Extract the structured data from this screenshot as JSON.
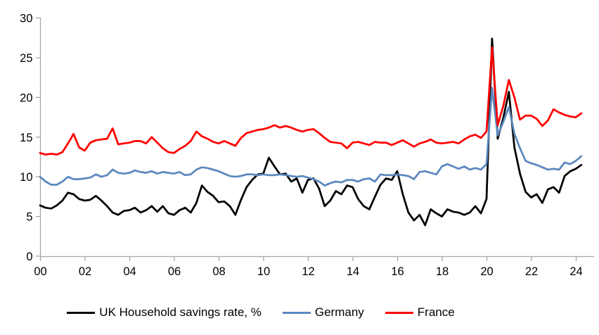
{
  "chart_data": {
    "type": "line",
    "title": "",
    "xlabel": "",
    "ylabel": "",
    "grid": false,
    "legend_position": "bottom",
    "x_start": 2000,
    "x_step": 0.25,
    "x_axis": {
      "tick_labels": [
        "00",
        "02",
        "04",
        "06",
        "08",
        "10",
        "12",
        "14",
        "16",
        "18",
        "20",
        "22",
        "24"
      ],
      "tick_years": [
        2000,
        2002,
        2004,
        2006,
        2008,
        2010,
        2012,
        2014,
        2016,
        2018,
        2020,
        2022,
        2024
      ]
    },
    "y_axis": {
      "min": 0,
      "max": 30,
      "tick_interval": 5,
      "tick_labels": [
        "0",
        "5",
        "10",
        "15",
        "20",
        "25",
        "30"
      ],
      "tick_values": [
        0,
        5,
        10,
        15,
        20,
        25,
        30
      ]
    },
    "series": [
      {
        "name": "UK Household savings rate, %",
        "color": "#000000",
        "values": [
          6.4,
          6.1,
          6.0,
          6.4,
          7.0,
          8.0,
          7.8,
          7.2,
          7.0,
          7.1,
          7.6,
          7.0,
          6.3,
          5.5,
          5.2,
          5.7,
          5.8,
          6.1,
          5.5,
          5.8,
          6.3,
          5.6,
          6.3,
          5.4,
          5.2,
          5.8,
          6.1,
          5.5,
          6.7,
          8.9,
          8.1,
          7.6,
          6.8,
          6.9,
          6.3,
          5.2,
          7.1,
          8.7,
          9.6,
          10.3,
          10.4,
          12.4,
          11.3,
          10.3,
          10.4,
          9.4,
          9.8,
          8.0,
          9.6,
          9.8,
          8.5,
          6.3,
          7.0,
          8.2,
          7.8,
          8.9,
          8.7,
          7.2,
          6.3,
          5.9,
          7.5,
          9.0,
          9.8,
          9.6,
          10.7,
          7.8,
          5.5,
          4.5,
          5.2,
          3.9,
          5.9,
          5.4,
          5.0,
          5.9,
          5.6,
          5.5,
          5.2,
          5.5,
          6.3,
          5.4,
          7.2,
          27.4,
          14.8,
          17.4,
          20.7,
          13.7,
          10.4,
          8.1,
          7.4,
          7.8,
          6.7,
          8.4,
          8.7,
          8.0,
          10.1,
          10.7,
          11.0,
          11.5
        ]
      },
      {
        "name": "Germany",
        "color": "#5B88BE",
        "values": [
          10.0,
          9.4,
          9.0,
          9.0,
          9.4,
          10.0,
          9.7,
          9.7,
          9.8,
          9.9,
          10.3,
          10.0,
          10.2,
          10.9,
          10.5,
          10.4,
          10.5,
          10.8,
          10.6,
          10.5,
          10.7,
          10.4,
          10.6,
          10.5,
          10.4,
          10.6,
          10.2,
          10.3,
          10.9,
          11.2,
          11.1,
          10.9,
          10.7,
          10.4,
          10.1,
          10.0,
          10.1,
          10.3,
          10.3,
          10.2,
          10.3,
          10.2,
          10.2,
          10.3,
          10.2,
          10.1,
          10.0,
          10.1,
          9.9,
          9.7,
          9.4,
          8.9,
          9.2,
          9.4,
          9.3,
          9.6,
          9.6,
          9.4,
          9.7,
          9.8,
          9.4,
          10.3,
          10.2,
          10.2,
          10.3,
          10.2,
          10.1,
          9.7,
          10.6,
          10.7,
          10.5,
          10.3,
          11.3,
          11.6,
          11.3,
          11.0,
          11.3,
          10.9,
          11.1,
          10.9,
          11.6,
          21.2,
          15.2,
          16.9,
          18.8,
          15.4,
          13.6,
          12.0,
          11.7,
          11.5,
          11.2,
          10.9,
          11.0,
          10.9,
          11.8,
          11.6,
          12.0,
          12.6
        ]
      },
      {
        "name": "France",
        "color": "#FF0000",
        "values": [
          13.0,
          12.8,
          12.9,
          12.8,
          13.1,
          14.2,
          15.4,
          13.7,
          13.3,
          14.3,
          14.6,
          14.7,
          14.8,
          16.1,
          14.1,
          14.2,
          14.3,
          14.5,
          14.5,
          14.2,
          15.0,
          14.3,
          13.6,
          13.1,
          13.0,
          13.5,
          13.9,
          14.5,
          15.7,
          15.1,
          14.8,
          14.4,
          14.2,
          14.5,
          14.2,
          13.9,
          14.9,
          15.5,
          15.7,
          15.9,
          16.0,
          16.2,
          16.5,
          16.2,
          16.4,
          16.2,
          15.9,
          15.7,
          15.9,
          16.0,
          15.5,
          14.9,
          14.4,
          14.3,
          14.2,
          13.6,
          14.3,
          14.4,
          14.2,
          14.0,
          14.4,
          14.3,
          14.3,
          14.0,
          14.3,
          14.6,
          14.2,
          13.8,
          14.2,
          14.4,
          14.7,
          14.3,
          14.2,
          14.3,
          14.4,
          14.2,
          14.7,
          15.1,
          15.3,
          14.9,
          15.7,
          26.3,
          16.5,
          18.9,
          22.2,
          20.0,
          17.2,
          17.7,
          17.7,
          17.3,
          16.4,
          17.1,
          18.5,
          18.1,
          17.8,
          17.6,
          17.5,
          18.0
        ]
      }
    ],
    "colors": {
      "axis": "#A6A6A6",
      "text": "#000000",
      "background": "#FFFFFF"
    }
  }
}
